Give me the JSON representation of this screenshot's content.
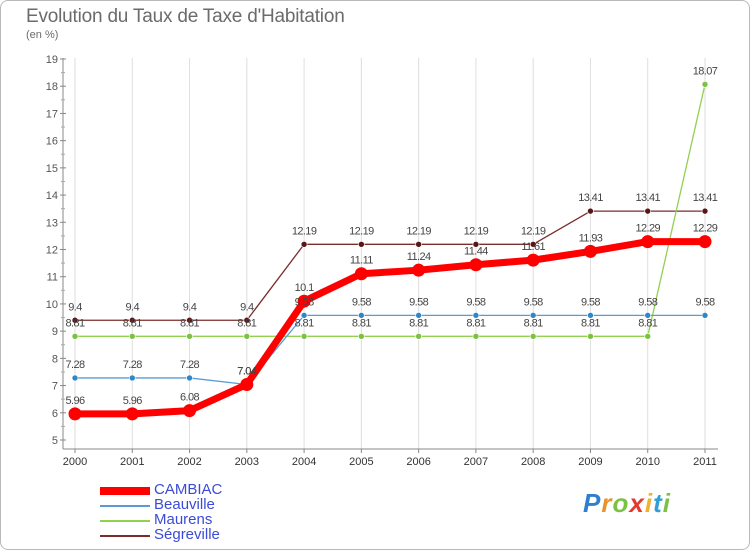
{
  "page": {
    "title": "Evolution du Taux de Taxe d'Habitation",
    "unit": "(en %)"
  },
  "logo": {
    "text": "Proxiti",
    "letter_colors": [
      "#2f7fd1",
      "#e8942d",
      "#7cc242",
      "#e43a2e",
      "#f0b12d",
      "#2f9fd6",
      "#7cc242"
    ]
  },
  "chart_data": {
    "type": "line",
    "title": "Evolution du Taux de Taxe d'Habitation",
    "ylabel": "(en %)",
    "xlabel": "",
    "x": [
      "2000",
      "2001",
      "2002",
      "2003",
      "2004",
      "2005",
      "2006",
      "2007",
      "2008",
      "2009",
      "2010",
      "2011"
    ],
    "ylim": [
      5,
      19
    ],
    "yticks": [
      "5",
      "6",
      "7",
      "8",
      "9",
      "10",
      "11",
      "12",
      "13",
      "14",
      "15",
      "16",
      "17",
      "18",
      "19"
    ],
    "grid": "vertical",
    "legend_position": "bottom-left",
    "series": [
      {
        "name": "CAMBIAC",
        "color": "#ff0000",
        "values": [
          5.96,
          5.96,
          6.08,
          7.04,
          10.1,
          11.11,
          11.24,
          11.44,
          11.61,
          11.93,
          12.29,
          12.29
        ],
        "labels": [
          "5.96",
          "5.96",
          "6.08",
          "7.04",
          "10.1",
          "11.11",
          "11.24",
          "11.44",
          "11.61",
          "11.93",
          "12.29",
          "12.29"
        ]
      },
      {
        "name": "Beauville",
        "color": "#5b9bd5",
        "values": [
          7.28,
          7.28,
          7.28,
          7.04,
          9.58,
          9.58,
          9.58,
          9.58,
          9.58,
          9.58,
          9.58,
          9.58
        ],
        "labels": [
          "7.28",
          "7.28",
          "7.28",
          "7.04",
          "9.58",
          "9.58",
          "9.58",
          "9.58",
          "9.58",
          "9.58",
          "9.58",
          "9.58"
        ]
      },
      {
        "name": "Maurens",
        "color": "#92d050",
        "values": [
          8.81,
          8.81,
          8.81,
          8.81,
          8.81,
          8.81,
          8.81,
          8.81,
          8.81,
          8.81,
          8.81,
          18.07
        ],
        "labels": [
          "8.81",
          "8.81",
          "8.81",
          "8.81",
          "8.81",
          "8.81",
          "8.81",
          "8.81",
          "8.81",
          "8.81",
          "8.81",
          "18.07"
        ]
      },
      {
        "name": "Ségreville",
        "color": "#7b2c2c",
        "values": [
          9.4,
          9.4,
          9.4,
          9.4,
          12.19,
          12.19,
          12.19,
          12.19,
          12.19,
          13.41,
          13.41,
          13.41
        ],
        "labels": [
          "9.4",
          "9.4",
          "9.4",
          "9.4",
          "12.19",
          "12.19",
          "12.19",
          "12.19",
          "12.19",
          "13.41",
          "13.41",
          "13.41"
        ]
      }
    ]
  }
}
